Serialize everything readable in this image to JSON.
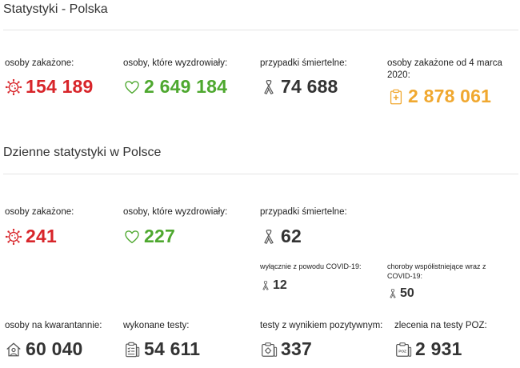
{
  "colors": {
    "infected": "#d8252a",
    "recovered": "#4ea82f",
    "deaths": "#333333",
    "total_infected": "#f0a830"
  },
  "poland": {
    "title": "Statystyki - Polska",
    "infected": {
      "label": "osoby zakażone:",
      "value": "154 189",
      "icon": "virus-icon"
    },
    "recovered": {
      "label": "osoby, które wyzdrowiały:",
      "value": "2 649 184",
      "icon": "heart-icon"
    },
    "deaths": {
      "label": "przypadki śmiertelne:",
      "value": "74 688",
      "icon": "ribbon-icon"
    },
    "total": {
      "label": "osoby zakażone od 4 marca 2020:",
      "value": "2 878 061",
      "icon": "clipboard-plus-icon"
    }
  },
  "daily": {
    "title": "Dzienne statystyki w Polsce",
    "infected": {
      "label": "osoby zakażone:",
      "value": "241"
    },
    "recovered": {
      "label": "osoby, które wyzdrowiały:",
      "value": "227"
    },
    "deaths": {
      "label": "przypadki śmiertelne:",
      "value": "62"
    },
    "deaths_covid_only": {
      "label": "wyłącznie z powodu COVID-19:",
      "value": "12"
    },
    "deaths_comorbid": {
      "label": "choroby współistniejące wraz z COVID-19:",
      "value": "50"
    },
    "quarantine": {
      "label": "osoby na kwarantannie:",
      "value": "60 040",
      "icon": "house-person-icon"
    },
    "tests": {
      "label": "wykonane testy:",
      "value": "54 611",
      "icon": "checklist-icon"
    },
    "positive_tests": {
      "label": "testy z wynikiem pozytywnym:",
      "value": "337",
      "icon": "virus-test-icon"
    },
    "poz_orders": {
      "label": "zlecenia na testy POZ:",
      "value": "2 931",
      "icon": "poz-icon",
      "icon_text": "POZ"
    }
  }
}
